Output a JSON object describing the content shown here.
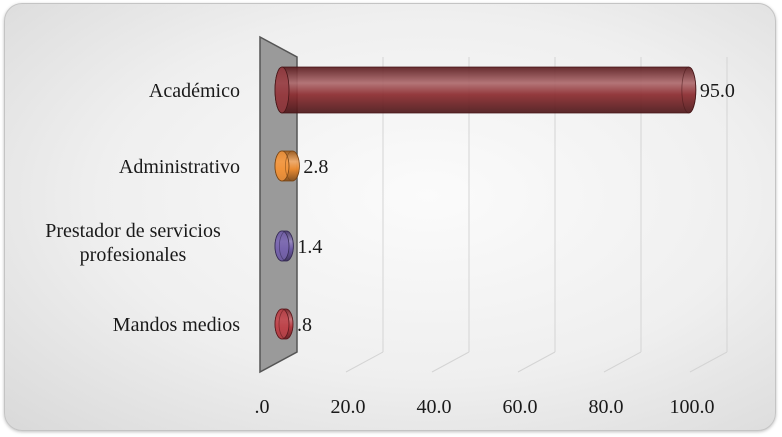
{
  "chart_data": {
    "type": "bar",
    "orientation": "horizontal",
    "style": "3d-cylinder",
    "categories": [
      [
        "Académico"
      ],
      [
        "Administrativo"
      ],
      [
        "Prestador de servicios",
        "profesionales"
      ],
      [
        "Mandos medios"
      ]
    ],
    "values": [
      95.0,
      2.8,
      1.4,
      0.8
    ],
    "data_labels": [
      "95.0",
      "2.8",
      "1.4",
      ".8"
    ],
    "colors": [
      "#8b2a2e",
      "#f08a2a",
      "#6a55a6",
      "#b8323a"
    ],
    "xlim": [
      0,
      100
    ],
    "x_ticks": [
      0,
      20,
      40,
      60,
      80,
      100
    ],
    "x_tick_labels": [
      ".0",
      "20.0",
      "40.0",
      "60.0",
      "80.0",
      "100.0"
    ],
    "title": "",
    "xlabel": "",
    "ylabel": "",
    "grid": true,
    "legend": "none"
  }
}
